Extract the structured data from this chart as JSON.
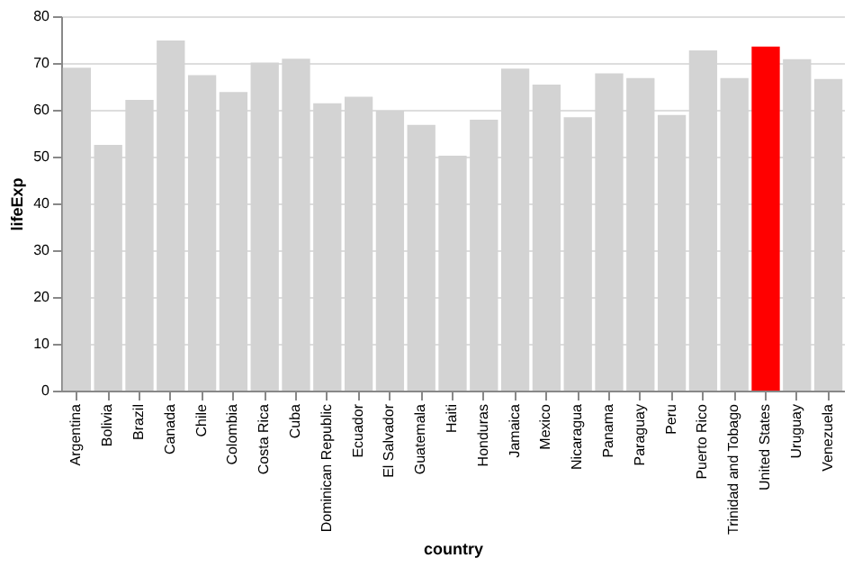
{
  "chart_data": {
    "type": "bar",
    "xlabel": "country",
    "ylabel": "lifeExp",
    "categories": [
      "Argentina",
      "Bolivia",
      "Brazil",
      "Canada",
      "Chile",
      "Colombia",
      "Costa Rica",
      "Cuba",
      "Dominican Republic",
      "Ecuador",
      "El Salvador",
      "Guatemala",
      "Haiti",
      "Honduras",
      "Jamaica",
      "Mexico",
      "Nicaragua",
      "Panama",
      "Paraguay",
      "Peru",
      "Puerto Rico",
      "Trinidad and Tobago",
      "United States",
      "Uruguay",
      "Venezuela"
    ],
    "values": [
      69.0,
      52.5,
      62.1,
      74.8,
      67.4,
      63.8,
      70.1,
      70.9,
      61.4,
      62.8,
      59.8,
      56.8,
      50.2,
      57.9,
      68.8,
      65.4,
      58.4,
      67.8,
      66.8,
      58.9,
      72.7,
      66.8,
      73.5,
      70.8,
      66.6
    ],
    "colors": [
      "#d3d3d3",
      "#d3d3d3",
      "#d3d3d3",
      "#d3d3d3",
      "#d3d3d3",
      "#d3d3d3",
      "#d3d3d3",
      "#d3d3d3",
      "#d3d3d3",
      "#d3d3d3",
      "#d3d3d3",
      "#d3d3d3",
      "#d3d3d3",
      "#d3d3d3",
      "#d3d3d3",
      "#d3d3d3",
      "#d3d3d3",
      "#d3d3d3",
      "#d3d3d3",
      "#d3d3d3",
      "#d3d3d3",
      "#d3d3d3",
      "#ff0000",
      "#d3d3d3",
      "#d3d3d3"
    ],
    "ylim": [
      0,
      80
    ],
    "yticks": [
      0,
      10,
      20,
      30,
      40,
      50,
      60,
      70,
      80
    ],
    "grid": "y"
  }
}
